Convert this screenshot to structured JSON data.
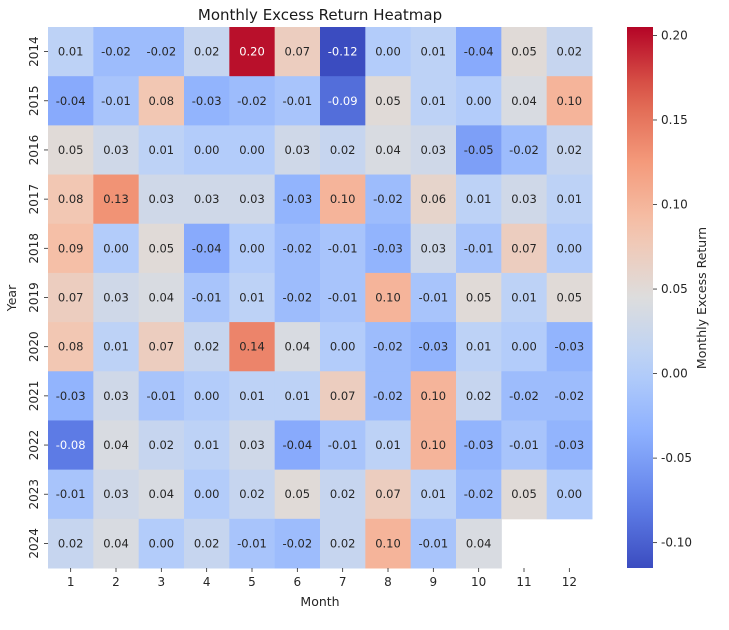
{
  "chart_data": {
    "type": "heatmap",
    "title": "Monthly Excess Return Heatmap",
    "xlabel": "Month",
    "ylabel": "Year",
    "x_categories": [
      "1",
      "2",
      "3",
      "4",
      "5",
      "6",
      "7",
      "8",
      "9",
      "10",
      "11",
      "12"
    ],
    "y_categories": [
      "2014",
      "2015",
      "2016",
      "2017",
      "2018",
      "2019",
      "2020",
      "2021",
      "2022",
      "2023",
      "2024"
    ],
    "values": [
      [
        0.01,
        -0.02,
        -0.02,
        0.02,
        0.2,
        0.07,
        -0.12,
        -0.0,
        0.01,
        -0.04,
        0.05,
        0.02
      ],
      [
        -0.04,
        -0.01,
        0.08,
        -0.03,
        -0.02,
        -0.01,
        -0.09,
        0.05,
        0.01,
        0.0,
        0.04,
        0.1
      ],
      [
        0.05,
        0.03,
        0.01,
        0.0,
        -0.0,
        0.03,
        0.02,
        0.04,
        0.03,
        -0.05,
        -0.02,
        0.02
      ],
      [
        0.08,
        0.13,
        0.03,
        0.03,
        0.03,
        -0.03,
        0.1,
        -0.02,
        0.06,
        0.01,
        0.03,
        0.01
      ],
      [
        0.09,
        0.0,
        0.05,
        -0.04,
        -0.0,
        -0.02,
        -0.01,
        -0.03,
        0.03,
        -0.01,
        0.07,
        0.0
      ],
      [
        0.07,
        0.03,
        0.04,
        -0.01,
        0.01,
        -0.02,
        -0.01,
        0.1,
        -0.01,
        0.05,
        0.01,
        0.05
      ],
      [
        0.08,
        0.01,
        0.07,
        0.02,
        0.14,
        0.04,
        -0.0,
        -0.02,
        -0.03,
        0.01,
        -0.0,
        -0.03
      ],
      [
        -0.03,
        0.03,
        -0.01,
        0.0,
        0.01,
        0.01,
        0.07,
        -0.02,
        0.1,
        0.02,
        -0.02,
        -0.02
      ],
      [
        -0.08,
        0.04,
        0.02,
        0.01,
        0.03,
        -0.04,
        -0.01,
        0.01,
        0.1,
        -0.03,
        -0.01,
        -0.03
      ],
      [
        -0.01,
        0.03,
        0.04,
        -0.0,
        0.02,
        0.05,
        0.02,
        0.07,
        0.01,
        -0.02,
        0.05,
        0.0
      ],
      [
        0.02,
        0.04,
        -0.0,
        0.02,
        -0.01,
        -0.02,
        0.02,
        0.1,
        -0.01,
        0.04,
        null,
        null
      ]
    ],
    "value_format": "0.00",
    "colormap": "coolwarm",
    "colorbar": {
      "label": "Monthly Excess Return",
      "range": [
        -0.115,
        0.205
      ],
      "center": 0.045,
      "ticks": [
        -0.1,
        -0.05,
        0.0,
        0.05,
        0.1,
        0.15,
        0.2
      ],
      "tick_labels": [
        "-0.10",
        "-0.05",
        "0.00",
        "0.05",
        "0.10",
        "0.15",
        "0.20"
      ]
    },
    "missing_cells": "blank",
    "grid": false,
    "legend": "colorbar-right"
  }
}
